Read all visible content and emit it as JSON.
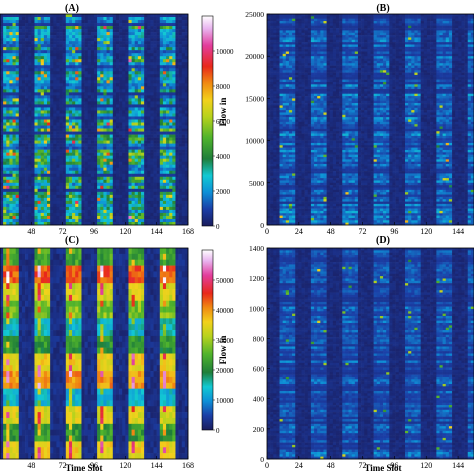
{
  "chart_data": [
    {
      "panel": "(A)",
      "type": "heatmap",
      "title": "(A)",
      "xticks": [
        "48",
        "72",
        "96",
        "120",
        "144",
        "168"
      ],
      "xlim": [
        24,
        168
      ],
      "xlabel": "",
      "ylabel": "",
      "colorbar": {
        "min": 0,
        "max": 12000,
        "ticks": [
          "0",
          "2000",
          "4000",
          "6000",
          "8000",
          "10000"
        ]
      }
    },
    {
      "panel": "(B)",
      "type": "heatmap",
      "title": "(B)",
      "xticks": [
        "0",
        "24",
        "48",
        "72",
        "96",
        "120",
        "144"
      ],
      "xlim": [
        0,
        156
      ],
      "yticks": [
        "0",
        "5000",
        "10000",
        "15000",
        "20000",
        "25000"
      ],
      "ylim": [
        0,
        25000
      ],
      "xlabel": "",
      "ylabel": "Flow in"
    },
    {
      "panel": "(C)",
      "type": "heatmap",
      "title": "(C)",
      "xticks": [
        "48",
        "72",
        "96",
        "120",
        "144",
        "168"
      ],
      "xlim": [
        24,
        168
      ],
      "xlabel": "Time Slot",
      "ylabel": "",
      "colorbar": {
        "min": 0,
        "max": 60000,
        "ticks": [
          "0",
          "10000",
          "20000",
          "30000",
          "40000",
          "50000"
        ]
      }
    },
    {
      "panel": "(D)",
      "type": "heatmap",
      "title": "(D)",
      "xticks": [
        "0",
        "24",
        "48",
        "72",
        "96",
        "120",
        "144"
      ],
      "xlim": [
        0,
        156
      ],
      "yticks": [
        "0",
        "200",
        "400",
        "600",
        "800",
        "1000",
        "1200",
        "1400"
      ],
      "ylim": [
        0,
        1400
      ],
      "xlabel": "Time Slot",
      "ylabel": "Flow in"
    }
  ],
  "colormap": [
    "#1a1c5c",
    "#1b3ea6",
    "#0e8fd6",
    "#12c9d3",
    "#1f7e3a",
    "#4fb32c",
    "#b7d21d",
    "#f2d11c",
    "#f08a12",
    "#e8281b",
    "#e23e9d",
    "#e9b4ef",
    "#ffffff"
  ]
}
